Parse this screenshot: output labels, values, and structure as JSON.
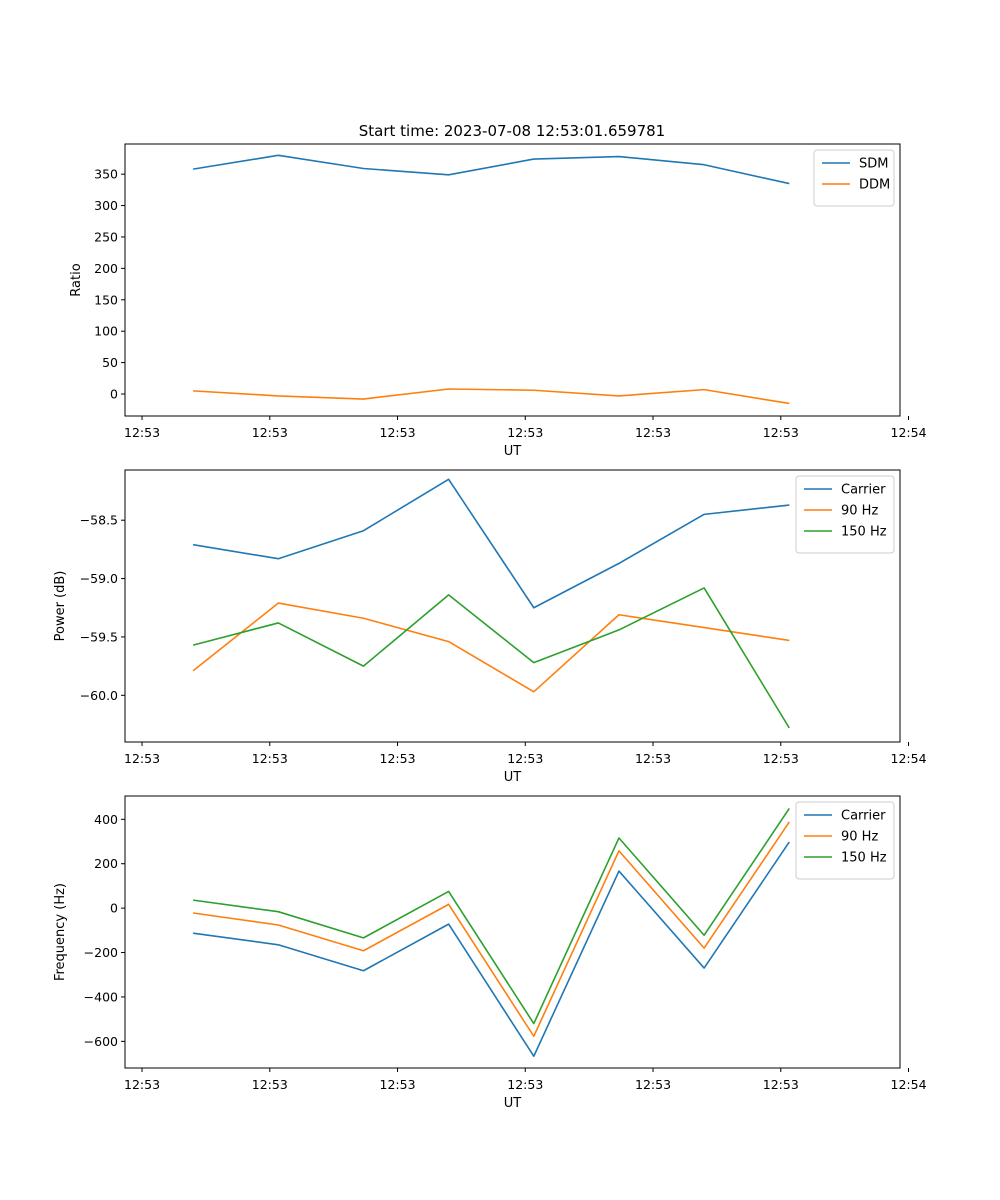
{
  "figure_title": "Start time: 2023-07-08 12:53:01.659781",
  "colors": {
    "blue": "#1f77b4",
    "orange": "#ff7f0e",
    "green": "#2ca02c"
  },
  "chart_data": [
    {
      "type": "line",
      "title": "Start time: 2023-07-08 12:53:01.659781",
      "xlabel": "UT",
      "ylabel": "Ratio",
      "x": [
        1,
        2,
        3,
        4,
        5,
        6,
        7,
        8
      ],
      "xlim": [
        0.2,
        9.3
      ],
      "ylim": [
        -35,
        398
      ],
      "yticks": [
        0,
        50,
        100,
        150,
        200,
        250,
        300,
        350
      ],
      "xticks": [
        0.4,
        1.9,
        3.4,
        4.9,
        6.4,
        7.9,
        9.4
      ],
      "xtick_labels": [
        "12:53",
        "12:53",
        "12:53",
        "12:53",
        "12:53",
        "12:53",
        "12:54"
      ],
      "legend_position": "upper right",
      "series": [
        {
          "name": "SDM",
          "color": "#1f77b4",
          "values": [
            358,
            380,
            359,
            349,
            374,
            378,
            365,
            335
          ]
        },
        {
          "name": "DDM",
          "color": "#ff7f0e",
          "values": [
            5,
            -3,
            -8,
            8,
            6,
            -3,
            7,
            -15
          ]
        }
      ]
    },
    {
      "type": "line",
      "xlabel": "UT",
      "ylabel": "Power (dB)",
      "x": [
        1,
        2,
        3,
        4,
        5,
        6,
        7,
        8
      ],
      "xlim": [
        0.2,
        9.3
      ],
      "ylim": [
        -60.4,
        -58.07
      ],
      "yticks": [
        -60.0,
        -59.5,
        -59.0,
        -58.5
      ],
      "ytick_labels": [
        "−60.0",
        "−59.5",
        "−59.0",
        "−58.5"
      ],
      "xticks": [
        0.4,
        1.9,
        3.4,
        4.9,
        6.4,
        7.9,
        9.4
      ],
      "xtick_labels": [
        "12:53",
        "12:53",
        "12:53",
        "12:53",
        "12:53",
        "12:53",
        "12:54"
      ],
      "legend_position": "upper right",
      "series": [
        {
          "name": "Carrier",
          "color": "#1f77b4",
          "values": [
            -58.71,
            -58.83,
            -58.59,
            -58.15,
            -59.25,
            -58.87,
            -58.45,
            -58.37
          ]
        },
        {
          "name": "90 Hz",
          "color": "#ff7f0e",
          "values": [
            -59.79,
            -59.21,
            -59.34,
            -59.54,
            -59.97,
            -59.31,
            -59.42,
            -59.53
          ]
        },
        {
          "name": "150 Hz",
          "color": "#2ca02c",
          "values": [
            -59.57,
            -59.38,
            -59.75,
            -59.14,
            -59.72,
            -59.44,
            -59.08,
            -60.28
          ]
        }
      ]
    },
    {
      "type": "line",
      "xlabel": "UT",
      "ylabel": "Frequency (Hz)",
      "x": [
        1,
        2,
        3,
        4,
        5,
        6,
        7,
        8
      ],
      "xlim": [
        0.2,
        9.3
      ],
      "ylim": [
        -720,
        505
      ],
      "yticks": [
        -600,
        -400,
        -200,
        0,
        200,
        400
      ],
      "ytick_labels": [
        "−600",
        "−400",
        "−200",
        "0",
        "200",
        "400"
      ],
      "xticks": [
        0.4,
        1.9,
        3.4,
        4.9,
        6.4,
        7.9,
        9.4
      ],
      "xtick_labels": [
        "12:53",
        "12:53",
        "12:53",
        "12:53",
        "12:53",
        "12:53",
        "12:54"
      ],
      "legend_position": "upper right",
      "series": [
        {
          "name": "Carrier",
          "color": "#1f77b4",
          "values": [
            -113,
            -165,
            -282,
            -72,
            -667,
            167,
            -270,
            298
          ]
        },
        {
          "name": "90 Hz",
          "color": "#ff7f0e",
          "values": [
            -22,
            -76,
            -192,
            17,
            -577,
            258,
            -180,
            388
          ]
        },
        {
          "name": "150 Hz",
          "color": "#2ca02c",
          "values": [
            36,
            -16,
            -134,
            75,
            -520,
            316,
            -122,
            449
          ]
        }
      ]
    }
  ]
}
